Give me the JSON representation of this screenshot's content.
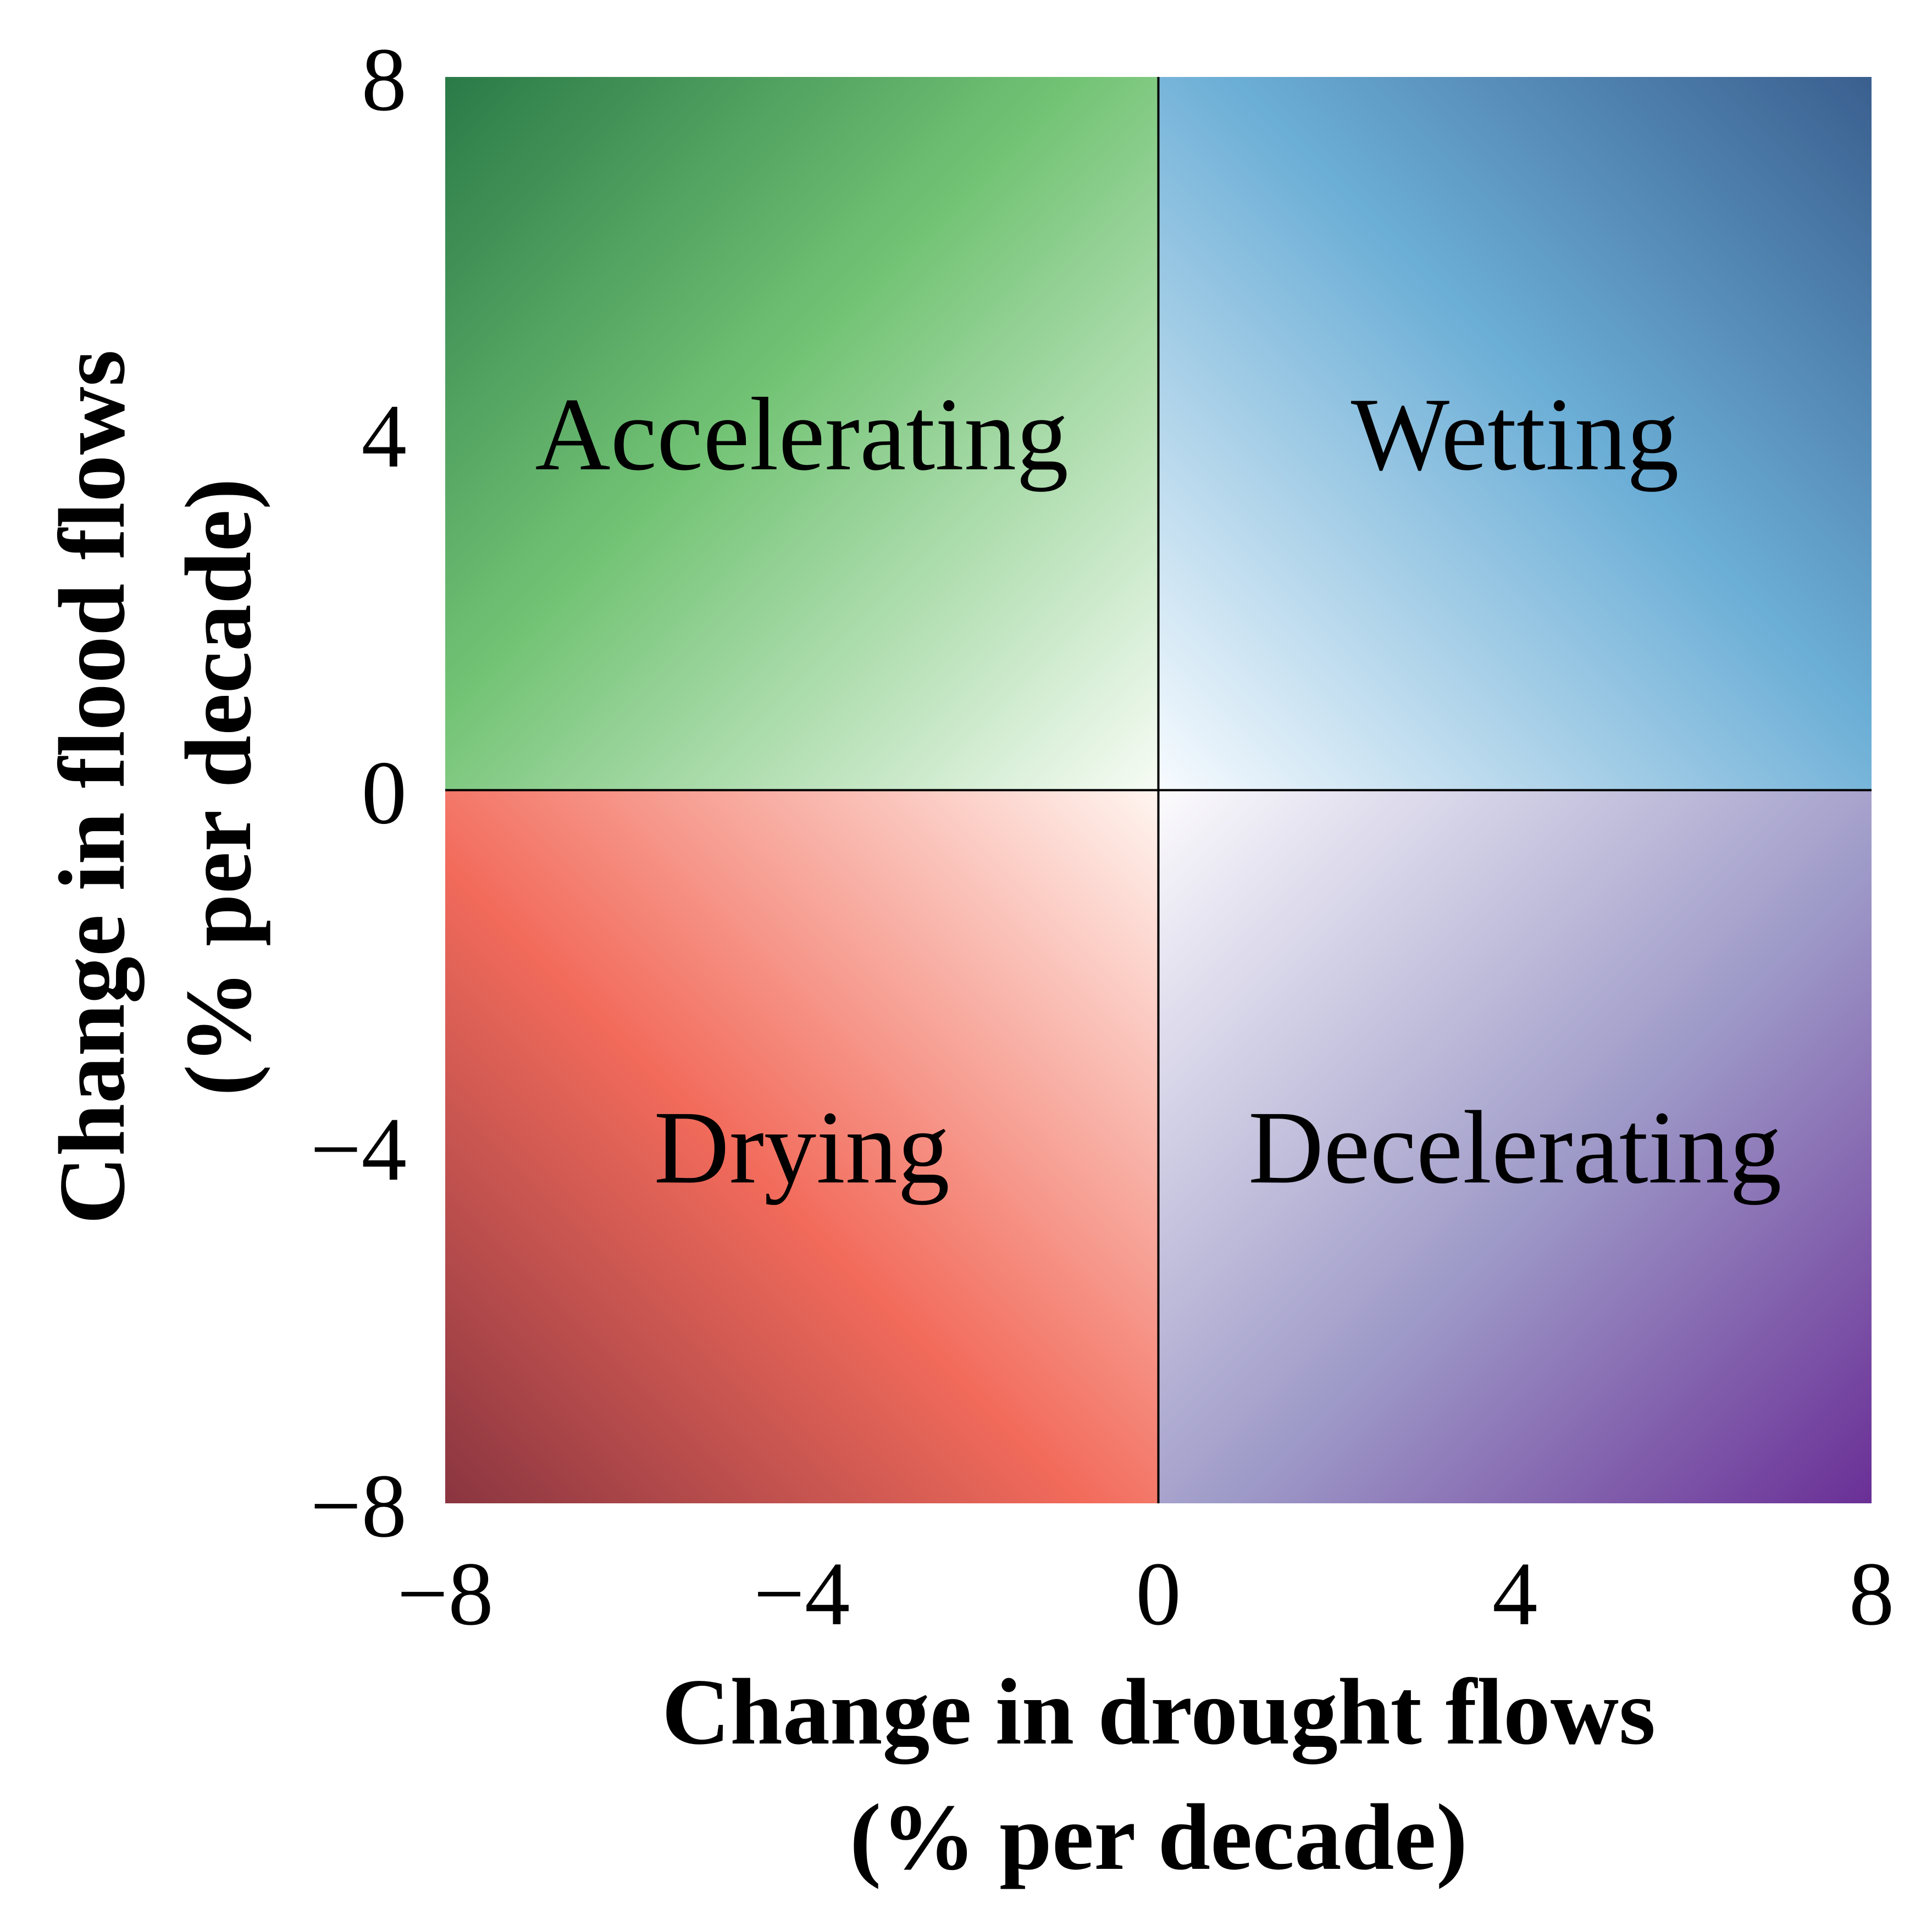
{
  "chart_data": {
    "type": "heatmap",
    "title": "",
    "xlabel_lines": [
      "Change in drought flows",
      "(% per decade)"
    ],
    "ylabel_lines": [
      "Change in flood flows",
      "(% per decade)"
    ],
    "xlim": [
      -8,
      8
    ],
    "ylim": [
      -8,
      8
    ],
    "xticks": [
      -8,
      -4,
      0,
      4,
      8
    ],
    "yticks": [
      -8,
      -4,
      0,
      4,
      8
    ],
    "xtick_labels": [
      "−8",
      "−4",
      "0",
      "4",
      "8"
    ],
    "ytick_labels": [
      "−8",
      "−4",
      "0",
      "4",
      "8"
    ],
    "grid": false,
    "reference_lines": {
      "x": 0,
      "y": 0
    },
    "quadrants": [
      {
        "label": "Accelerating",
        "x": -4,
        "y": 4,
        "x_range": [
          -8,
          0
        ],
        "y_range": [
          0,
          8
        ],
        "inner_color": "#f7fcf5",
        "mid_color": "#74c476",
        "outer_color": "#2a7a48"
      },
      {
        "label": "Wetting",
        "x": 4,
        "y": 4,
        "x_range": [
          0,
          8
        ],
        "y_range": [
          0,
          8
        ],
        "inner_color": "#f7fbff",
        "mid_color": "#6baed6",
        "outer_color": "#3a5f8f"
      },
      {
        "label": "Drying",
        "x": -4,
        "y": -4,
        "x_range": [
          -8,
          0
        ],
        "y_range": [
          -8,
          0
        ],
        "inner_color": "#fff5f0",
        "mid_color": "#f26b5b",
        "outer_color": "#8a3540"
      },
      {
        "label": "Decelerating",
        "x": 4,
        "y": -4,
        "x_range": [
          0,
          8
        ],
        "y_range": [
          -8,
          0
        ],
        "inner_color": "#fcfbfd",
        "mid_color": "#9e9ac8",
        "outer_color": "#6a2f96"
      }
    ]
  }
}
